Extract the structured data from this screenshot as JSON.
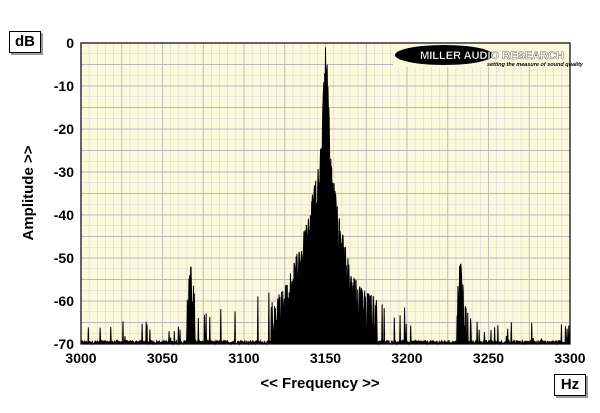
{
  "chart_data": {
    "type": "area",
    "title": "",
    "xlabel": "<< Frequency >>",
    "ylabel": "Amplitude >>",
    "x_unit": "Hz",
    "y_unit": "dB",
    "xlim": [
      3000,
      3300
    ],
    "ylim": [
      -70,
      0
    ],
    "x_ticks": [
      3000,
      3050,
      3100,
      3150,
      3200,
      3250,
      3300
    ],
    "y_ticks": [
      0,
      -10,
      -20,
      -30,
      -40,
      -50,
      -60,
      -70
    ],
    "grid": true,
    "legend": "none",
    "colors": {
      "plot_background": "#fbf8dc",
      "grid_major": "#b9b9b9",
      "grid_minor": "#d6d6d6",
      "trace": "#000000"
    },
    "series": [
      {
        "values_x": [
          3000,
          3010,
          3020,
          3030,
          3040,
          3050,
          3055,
          3060,
          3064,
          3066,
          3067,
          3068,
          3070,
          3072,
          3075,
          3080,
          3090,
          3100,
          3110,
          3120,
          3125,
          3130,
          3135,
          3138,
          3140,
          3142,
          3144,
          3146,
          3147,
          3148,
          3149,
          3150,
          3151,
          3152,
          3153,
          3154,
          3156,
          3158,
          3160,
          3162,
          3165,
          3170,
          3175,
          3180,
          3185,
          3190,
          3195,
          3200,
          3210,
          3220,
          3228,
          3230,
          3231,
          3232,
          3233,
          3234,
          3236,
          3240,
          3250,
          3260,
          3270,
          3280,
          3290,
          3300
        ],
        "values": [
          -68,
          -68,
          -69,
          -68,
          -68,
          -69,
          -69,
          -68,
          -64,
          -56,
          -51,
          -52,
          -60,
          -67,
          -67,
          -66,
          -65,
          -64,
          -62,
          -59,
          -57,
          -52,
          -46,
          -42,
          -38,
          -35,
          -32,
          -28,
          -24,
          -18,
          -8,
          -1,
          -5,
          -15,
          -24,
          -30,
          -34,
          -38,
          -43,
          -47,
          -52,
          -56,
          -58,
          -59,
          -62,
          -64,
          -64,
          -66,
          -68,
          -69,
          -68,
          -66,
          -58,
          -52,
          -51,
          -55,
          -64,
          -68,
          -68,
          -69,
          -68,
          -69,
          -68,
          -68
        ]
      }
    ]
  },
  "logo": {
    "brand": "MILLER AUDIO RESEARCH",
    "tagline": "setting the measure of sound quality"
  }
}
